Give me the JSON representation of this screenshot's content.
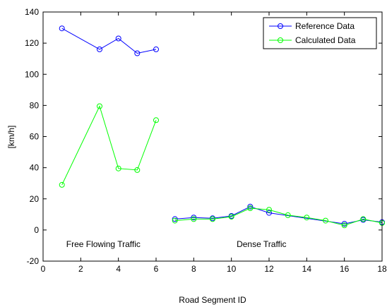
{
  "chart_data": {
    "type": "line",
    "title": "",
    "xlabel": "Road Segment ID",
    "ylabel": "[km/h]",
    "xlim": [
      0,
      18
    ],
    "ylim": [
      -20,
      140
    ],
    "xticks": [
      0,
      2,
      4,
      6,
      8,
      10,
      12,
      14,
      16,
      18
    ],
    "yticks": [
      -20,
      0,
      20,
      40,
      60,
      80,
      100,
      120,
      140
    ],
    "grid": false,
    "legend_position": "top-right",
    "series": [
      {
        "name": "Reference Data",
        "color": "#0000ff",
        "marker": "circle",
        "segments": [
          {
            "x": [
              1,
              3,
              4,
              5,
              6
            ],
            "y": [
              129.5,
              116,
              123,
              113.5,
              116
            ]
          },
          {
            "x": [
              7,
              8,
              9,
              10,
              11,
              12,
              16,
              17,
              18
            ],
            "y": [
              7,
              8,
              7.5,
              9,
              15,
              11,
              4,
              6.5,
              5
            ]
          }
        ]
      },
      {
        "name": "Calculated Data",
        "color": "#00ff00",
        "marker": "circle",
        "segments": [
          {
            "x": [
              1,
              3,
              4,
              5,
              6
            ],
            "y": [
              29,
              79.5,
              39.5,
              38.5,
              70.5
            ]
          },
          {
            "x": [
              7,
              8,
              9,
              10,
              11,
              12,
              13,
              14,
              15,
              16,
              17,
              18
            ],
            "y": [
              6,
              7,
              7,
              8.5,
              14,
              13,
              9.5,
              8,
              6,
              3,
              7,
              4.5
            ]
          }
        ]
      }
    ],
    "annotations": [
      {
        "text": "Free Flowing Traffic",
        "x": 3.2,
        "y": -11
      },
      {
        "text": "Dense Traffic",
        "x": 11.6,
        "y": -11
      }
    ]
  }
}
